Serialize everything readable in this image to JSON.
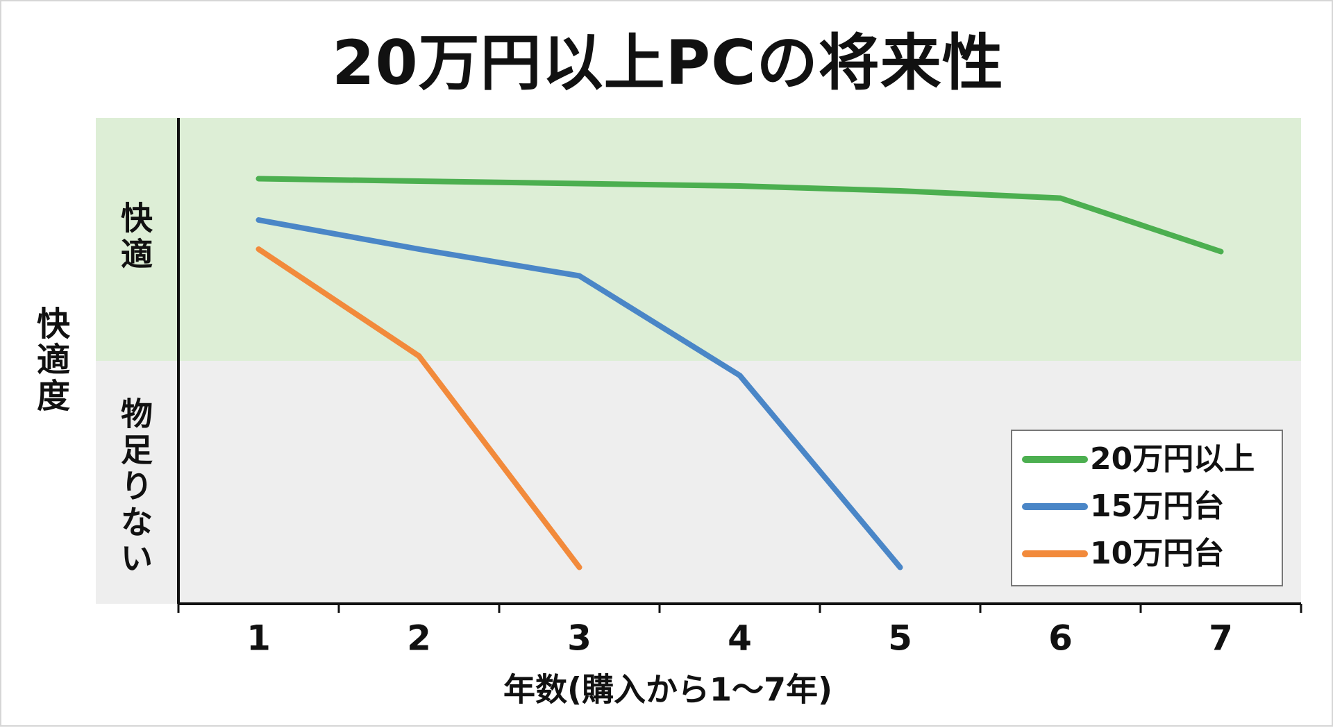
{
  "title": "20万円以上PCの将来性",
  "chart_data": {
    "type": "line",
    "title": "20万円以上PCの将来性",
    "xlabel": "年数(購入から1〜7年)",
    "ylabel": "快適度",
    "x": [
      1,
      2,
      3,
      4,
      5,
      6,
      7
    ],
    "xlim": [
      0.5,
      7.5
    ],
    "ylim": [
      0,
      100
    ],
    "grid": false,
    "legend": "bottom-right",
    "bands": [
      {
        "label": "快適",
        "from": 50,
        "to": 100,
        "color": "#ddeed6"
      },
      {
        "label": "物足りない",
        "from": 0,
        "to": 50,
        "color": "#eeeeee"
      }
    ],
    "series": [
      {
        "name": "20万円以上",
        "color": "#4caf50",
        "values": [
          87.5,
          87.0,
          86.5,
          86.0,
          85.0,
          83.5,
          72.5
        ]
      },
      {
        "name": "15万円台",
        "color": "#4a86c7",
        "values": [
          79.0,
          73.0,
          67.5,
          47.0,
          7.5,
          null,
          null
        ]
      },
      {
        "name": "10万円台",
        "color": "#f28a3b",
        "values": [
          73.0,
          51.0,
          7.5,
          null,
          null,
          null,
          null
        ]
      }
    ]
  }
}
